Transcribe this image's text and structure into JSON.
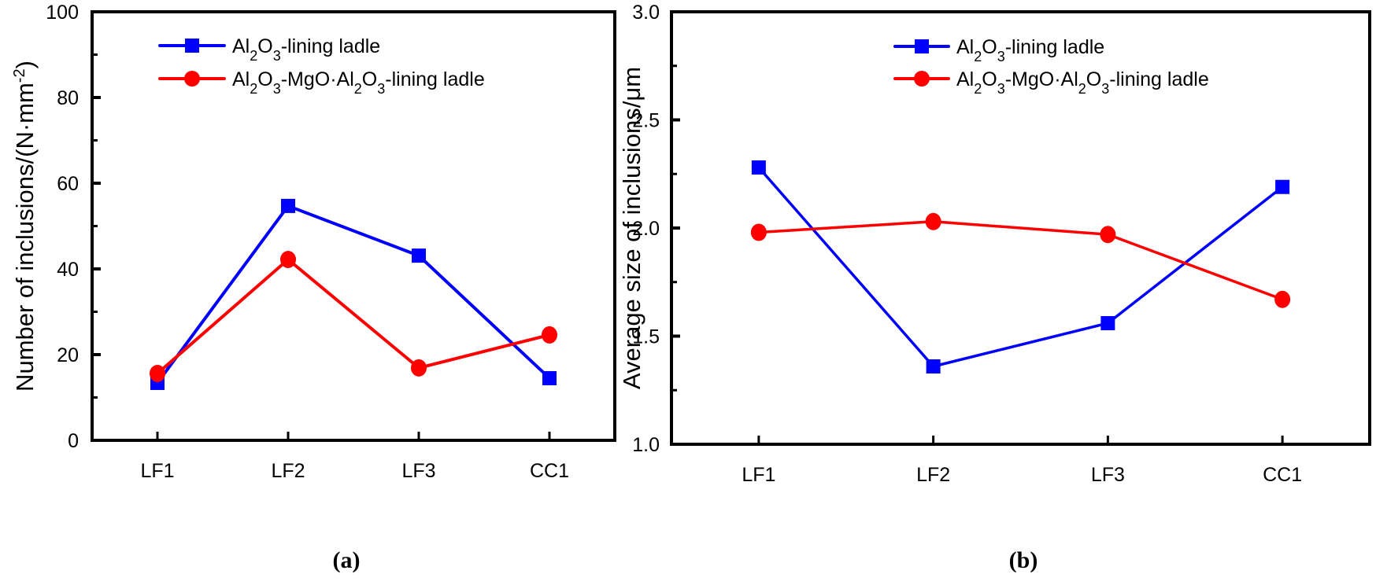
{
  "chart_data": [
    {
      "type": "line",
      "panel_label": "(a)",
      "title": "",
      "xlabel": "",
      "ylabel": "Number of inclusions/(N·mm⁻²)",
      "ylabel_parts": {
        "main": "Number of inclusions/(N·mm",
        "sup": "-2",
        "tail": ")"
      },
      "categories": [
        "LF1",
        "LF2",
        "LF3",
        "CC1"
      ],
      "ylim": [
        0,
        100
      ],
      "yticks": [
        0,
        20,
        40,
        60,
        80,
        100
      ],
      "ytick_labels": [
        "0",
        "20",
        "40",
        "60",
        "80",
        "100"
      ],
      "minor_yticks": [
        10,
        30,
        50,
        70,
        90
      ],
      "grid": false,
      "legend_position": "top-center",
      "series": [
        {
          "name": "Al2O3-lining ladle",
          "label_parts": [
            "Al",
            "2",
            "O",
            "3",
            "-lining ladle"
          ],
          "color": "#0000ff",
          "marker": "square",
          "values": [
            13.4,
            54.7,
            43.1,
            14.5
          ]
        },
        {
          "name": "Al2O3-MgO·Al2O3-lining ladle",
          "label_parts": [
            "Al",
            "2",
            "O",
            "3",
            "-MgO·Al",
            "2",
            "O",
            "3",
            "-lining ladle"
          ],
          "color": "#ff0000",
          "marker": "circle",
          "values": [
            15.6,
            42.2,
            16.9,
            24.6
          ]
        }
      ]
    },
    {
      "type": "line",
      "panel_label": "(b)",
      "title": "",
      "xlabel": "",
      "ylabel": "Average size of inclusions/μm",
      "ylabel_parts": {
        "main": "Average size of inclusions/μm",
        "sup": "",
        "tail": ""
      },
      "categories": [
        "LF1",
        "LF2",
        "LF3",
        "CC1"
      ],
      "ylim": [
        1.0,
        3.0
      ],
      "yticks": [
        1.0,
        1.5,
        2.0,
        2.5,
        3.0
      ],
      "ytick_labels": [
        "1.0",
        "1.5",
        "2.0",
        "2.5",
        "3.0"
      ],
      "minor_yticks": [
        1.25,
        1.75,
        2.25,
        2.75
      ],
      "grid": false,
      "legend_position": "top-center",
      "series": [
        {
          "name": "Al2O3-lining ladle",
          "label_parts": [
            "Al",
            "2",
            "O",
            "3",
            "-lining ladle"
          ],
          "color": "#0000ff",
          "marker": "square",
          "values": [
            2.28,
            1.36,
            1.56,
            2.19
          ]
        },
        {
          "name": "Al2O3-MgO·Al2O3-lining ladle",
          "label_parts": [
            "Al",
            "2",
            "O",
            "3",
            "-MgO·Al",
            "2",
            "O",
            "3",
            "-lining ladle"
          ],
          "color": "#ff0000",
          "marker": "circle",
          "values": [
            1.98,
            2.03,
            1.97,
            1.67
          ]
        }
      ]
    }
  ]
}
